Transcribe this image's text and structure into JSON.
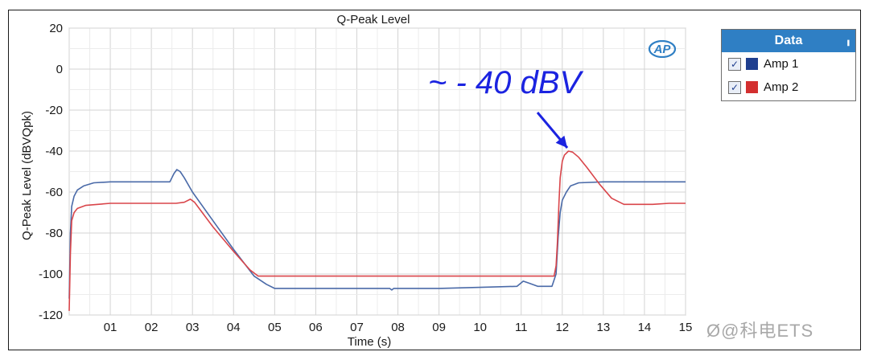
{
  "chart_data": {
    "type": "line",
    "title": "Q-Peak Level",
    "xlabel": "Time (s)",
    "ylabel": "Q-Peak Level (dBVQpk)",
    "xlim": [
      0,
      15
    ],
    "ylim": [
      -120,
      20
    ],
    "xticks": [
      1,
      2,
      3,
      4,
      5,
      6,
      7,
      8,
      9,
      10,
      11,
      12,
      13,
      14,
      15
    ],
    "xtick_labels": [
      "01",
      "02",
      "03",
      "04",
      "05",
      "06",
      "07",
      "08",
      "09",
      "10",
      "11",
      "12",
      "13",
      "14",
      "15"
    ],
    "yticks": [
      20,
      0,
      -20,
      -40,
      -60,
      -80,
      -100,
      -120
    ],
    "ytick_labels": [
      "20",
      "0",
      "-20",
      "-40",
      "-60",
      "-80",
      "-100",
      "-120"
    ],
    "grid": true,
    "series": [
      {
        "name": "Amp 1",
        "color": "#4a6aa8",
        "x": [
          0,
          0.03,
          0.06,
          0.12,
          0.2,
          0.35,
          0.6,
          1.0,
          1.5,
          2.0,
          2.45,
          2.55,
          2.62,
          2.7,
          2.8,
          3.0,
          3.5,
          4.0,
          4.5,
          4.8,
          5.0,
          5.5,
          6.0,
          7.0,
          7.8,
          7.85,
          7.9,
          8.5,
          9.0,
          10.0,
          10.9,
          11.05,
          11.2,
          11.4,
          11.75,
          11.85,
          11.9,
          11.95,
          12.0,
          12.1,
          12.2,
          12.4,
          13.0,
          14.0,
          15.0
        ],
        "y": [
          -112,
          -80,
          -67,
          -62,
          -59,
          -57,
          -55.5,
          -55,
          -55,
          -55,
          -55,
          -51,
          -49,
          -50,
          -53,
          -60,
          -74,
          -88,
          -101,
          -105,
          -107,
          -107,
          -107,
          -107,
          -107,
          -107.8,
          -107,
          -107,
          -107,
          -106.5,
          -106,
          -103.5,
          -104.5,
          -106,
          -106,
          -100,
          -82,
          -70,
          -64,
          -60,
          -57,
          -55.5,
          -55,
          -55,
          -55
        ]
      },
      {
        "name": "Amp 2",
        "color": "#d9454a",
        "x": [
          0,
          0.03,
          0.06,
          0.12,
          0.2,
          0.4,
          0.7,
          1.0,
          1.5,
          2.0,
          2.6,
          2.8,
          2.95,
          3.05,
          3.5,
          4.0,
          4.4,
          4.6,
          5.0,
          6.0,
          7.0,
          8.0,
          9.0,
          10.0,
          11.0,
          11.8,
          11.85,
          11.88,
          11.92,
          11.95,
          12.0,
          12.05,
          12.15,
          12.25,
          12.4,
          12.6,
          12.9,
          13.2,
          13.5,
          13.8,
          14.2,
          14.6,
          15.0
        ],
        "y": [
          -118,
          -90,
          -74,
          -70,
          -68,
          -66.5,
          -66,
          -65.5,
          -65.5,
          -65.5,
          -65.5,
          -65,
          -63.5,
          -65,
          -77,
          -89,
          -98,
          -101,
          -101,
          -101,
          -101,
          -101,
          -101,
          -101,
          -101,
          -101,
          -96,
          -85,
          -65,
          -53,
          -45,
          -42,
          -40,
          -40.5,
          -43,
          -48,
          -56,
          -63,
          -66,
          -66,
          -66,
          -65.5,
          -65.5
        ]
      }
    ],
    "annotations": [
      {
        "text": "~ - 40 dBV",
        "x": 12.2,
        "y": -40,
        "color": "#1b23e0"
      }
    ],
    "legend": {
      "title": "Data",
      "placement": "right"
    }
  },
  "legend": {
    "title": "Data",
    "pin_icon": "pin-icon",
    "items": [
      {
        "label": "Amp 1",
        "color": "#1f3f8f",
        "checked": true
      },
      {
        "label": "Amp 2",
        "color": "#d32f2f",
        "checked": true
      }
    ]
  },
  "logo": {
    "text": "AP",
    "icon": "ap-logo"
  },
  "watermark": "Ø@科电ETS"
}
